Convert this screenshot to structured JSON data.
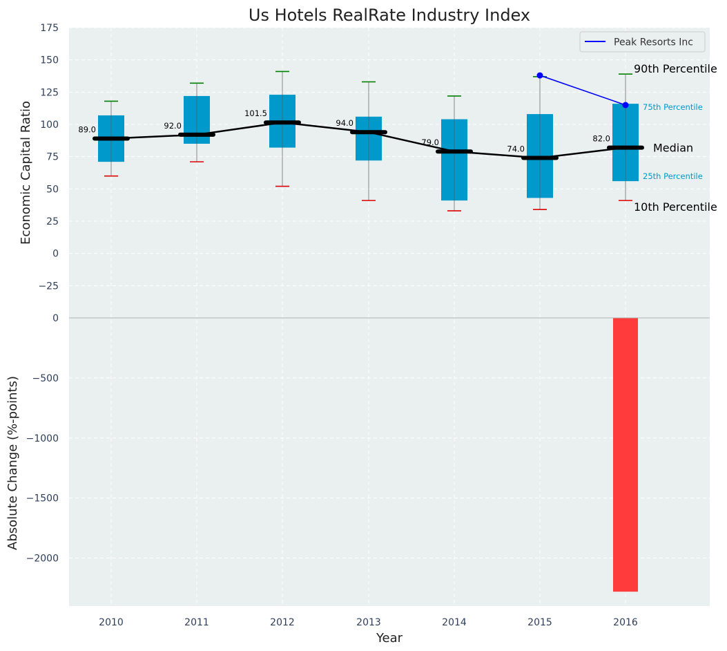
{
  "chart_data": [
    {
      "type": "box",
      "title": "Us Hotels RealRate Industry Index",
      "ylabel": "Economic Capital Ratio",
      "ylim": [
        -50,
        175
      ],
      "yticks": [
        175,
        150,
        125,
        100,
        75,
        50,
        25,
        0,
        -25
      ],
      "ytick_labels": [
        "175",
        "150",
        "125",
        "100",
        "75",
        "50",
        "25",
        "0",
        "−25"
      ],
      "grid": true,
      "legend_position": "top-right",
      "categories": [
        "2010",
        "2011",
        "2012",
        "2013",
        "2014",
        "2015",
        "2016"
      ],
      "boxes": [
        {
          "year": "2010",
          "p10": 60,
          "p25": 71,
          "median": 89.0,
          "p75": 107,
          "p90": 118
        },
        {
          "year": "2011",
          "p10": 71,
          "p25": 85,
          "median": 92.0,
          "p75": 122,
          "p90": 132
        },
        {
          "year": "2012",
          "p10": 52,
          "p25": 82,
          "median": 101.5,
          "p75": 123,
          "p90": 141
        },
        {
          "year": "2013",
          "p10": 41,
          "p25": 72,
          "median": 94.0,
          "p75": 106,
          "p90": 133
        },
        {
          "year": "2014",
          "p10": 33,
          "p25": 41,
          "median": 79.0,
          "p75": 104,
          "p90": 122
        },
        {
          "year": "2015",
          "p10": 34,
          "p25": 43,
          "median": 74.0,
          "p75": 108,
          "p90": 137
        },
        {
          "year": "2016",
          "p10": 41,
          "p25": 56,
          "median": 82.0,
          "p75": 116,
          "p90": 139
        }
      ],
      "median_labels": [
        "89.0",
        "92.0",
        "101.5",
        "94.0",
        "79.0",
        "74.0",
        "82.0"
      ],
      "series": [
        {
          "name": "Peak Resorts Inc",
          "x": [
            "2015",
            "2016"
          ],
          "values": [
            138,
            115
          ]
        }
      ],
      "annotations": {
        "p90": "90th Percentile",
        "p75": "75th Percentile",
        "median": "Median",
        "p25": "25th Percentile",
        "p10": "10th Percentile"
      }
    },
    {
      "type": "bar",
      "ylabel": "Absolute Change (%-points)",
      "xlabel": "Year",
      "ylim": [
        -2400,
        0
      ],
      "yticks": [
        0,
        -500,
        -1000,
        -1500,
        -2000
      ],
      "ytick_labels": [
        "0",
        "−500",
        "−1000",
        "−1500",
        "−2000"
      ],
      "categories": [
        "2010",
        "2011",
        "2012",
        "2013",
        "2014",
        "2015",
        "2016"
      ],
      "values": [
        null,
        null,
        null,
        null,
        null,
        null,
        -2280
      ]
    }
  ],
  "colors": {
    "background": "#eaeff0",
    "box": "#0099cc",
    "median": "#000000",
    "whisker_high": "#008000",
    "whisker_low": "#dd0000",
    "company": "#0000ff",
    "bar": "#ff3b3b",
    "tick_text": "#2d3e59",
    "annotation_small": "#0099cc"
  }
}
